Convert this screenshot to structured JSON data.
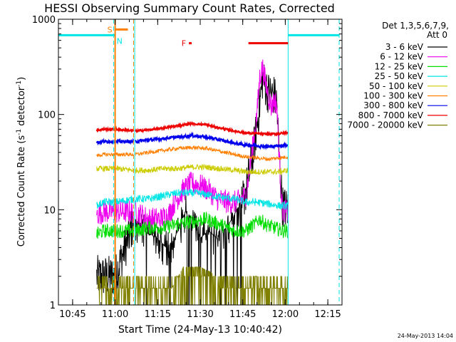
{
  "chart_data": {
    "type": "line",
    "title": "HESSI Observing Summary Count Rates, Corrected",
    "xlabel": "Start Time (24-May-13 10:40:42)",
    "ylabel_main": "Corrected Count Rate (s",
    "ylabel_sup1": "-1",
    "ylabel_mid": " detector",
    "ylabel_sup2": "-1",
    "ylabel_end": ")",
    "y_scale": "log",
    "ylim": [
      1,
      1000
    ],
    "xlim_minutes": [
      640,
      740
    ],
    "x_ticks": [
      {
        "m": 645,
        "label": "10:45"
      },
      {
        "m": 660,
        "label": "11:00"
      },
      {
        "m": 675,
        "label": "11:15"
      },
      {
        "m": 690,
        "label": "11:30"
      },
      {
        "m": 705,
        "label": "11:45"
      },
      {
        "m": 720,
        "label": "12:00"
      },
      {
        "m": 735,
        "label": "12:15"
      }
    ],
    "y_ticks": [
      {
        "v": 1,
        "label": "1"
      },
      {
        "v": 10,
        "label": "10"
      },
      {
        "v": 100,
        "label": "100"
      },
      {
        "v": 1000,
        "label": "1000"
      }
    ],
    "legend_header": [
      "Det 1,3,5,6,7,9,",
      "Att 0"
    ],
    "legend_position": "right",
    "footer": "24-May-2013 14:04",
    "data_gaps": [
      [
        640,
        653.5
      ],
      [
        666.5,
        667
      ],
      [
        721,
        740
      ]
    ],
    "series": [
      {
        "name": "3 - 6 keV",
        "color": "#000000",
        "values": [
          [
            653.5,
            2.0
          ],
          [
            655,
            2.0
          ],
          [
            660,
            2.0
          ],
          [
            667,
            8
          ],
          [
            670,
            6
          ],
          [
            675,
            5
          ],
          [
            678,
            4
          ],
          [
            681,
            5
          ],
          [
            685,
            10
          ],
          [
            687,
            8
          ],
          [
            690,
            5
          ],
          [
            693,
            6
          ],
          [
            696,
            5
          ],
          [
            700,
            7
          ],
          [
            703,
            10
          ],
          [
            706,
            15
          ],
          [
            709,
            45
          ],
          [
            711,
            130
          ],
          [
            712,
            240
          ],
          [
            713,
            200
          ],
          [
            714,
            170
          ],
          [
            716,
            160
          ],
          [
            717,
            130
          ],
          [
            718,
            30
          ],
          [
            719,
            11
          ],
          [
            721,
            10
          ]
        ]
      },
      {
        "name": "6 - 12 keV",
        "color": "#ee00ee",
        "values": [
          [
            653.5,
            9
          ],
          [
            656,
            9.5
          ],
          [
            660,
            9.5
          ],
          [
            667,
            9.5
          ],
          [
            672,
            8
          ],
          [
            676,
            8
          ],
          [
            679,
            9
          ],
          [
            681,
            12
          ],
          [
            684,
            16
          ],
          [
            687,
            19
          ],
          [
            690,
            18
          ],
          [
            693,
            16
          ],
          [
            696,
            13
          ],
          [
            700,
            12
          ],
          [
            703,
            12
          ],
          [
            706,
            14
          ],
          [
            708,
            35
          ],
          [
            710,
            100
          ],
          [
            711,
            250
          ],
          [
            712,
            310
          ],
          [
            713,
            220
          ],
          [
            714,
            160
          ],
          [
            715,
            120
          ],
          [
            716,
            140
          ],
          [
            717,
            130
          ],
          [
            718,
            30
          ],
          [
            719,
            10
          ],
          [
            721,
            9.5
          ]
        ]
      },
      {
        "name": "12 - 25 keV",
        "color": "#00dd00",
        "values": [
          [
            653.5,
            5.5
          ],
          [
            656,
            6
          ],
          [
            660,
            6
          ],
          [
            667,
            6
          ],
          [
            672,
            6.5
          ],
          [
            677,
            6.5
          ],
          [
            682,
            7
          ],
          [
            687,
            7.5
          ],
          [
            692,
            8
          ],
          [
            697,
            7
          ],
          [
            702,
            6
          ],
          [
            706,
            6
          ],
          [
            709,
            7
          ],
          [
            711,
            8
          ],
          [
            713,
            7
          ],
          [
            716,
            6.5
          ],
          [
            719,
            6
          ],
          [
            721,
            6
          ]
        ]
      },
      {
        "name": "25 - 50 keV",
        "color": "#00e5e5",
        "values": [
          [
            653.5,
            11
          ],
          [
            656,
            12
          ],
          [
            660,
            12
          ],
          [
            667,
            13
          ],
          [
            672,
            13
          ],
          [
            677,
            14
          ],
          [
            682,
            15
          ],
          [
            687,
            15
          ],
          [
            692,
            14.5
          ],
          [
            697,
            13.5
          ],
          [
            702,
            13
          ],
          [
            706,
            12
          ],
          [
            710,
            12
          ],
          [
            714,
            11.5
          ],
          [
            718,
            11
          ],
          [
            721,
            11
          ]
        ]
      },
      {
        "name": "50 - 100 keV",
        "color": "#cccc00",
        "values": [
          [
            653.5,
            27
          ],
          [
            656,
            27
          ],
          [
            660,
            27
          ],
          [
            667,
            26
          ],
          [
            672,
            26
          ],
          [
            677,
            27
          ],
          [
            682,
            27
          ],
          [
            687,
            28
          ],
          [
            692,
            28
          ],
          [
            697,
            27
          ],
          [
            702,
            26
          ],
          [
            706,
            25
          ],
          [
            710,
            25
          ],
          [
            714,
            25
          ],
          [
            718,
            25
          ],
          [
            721,
            26
          ]
        ]
      },
      {
        "name": "100 - 300 keV",
        "color": "#ff8000",
        "values": [
          [
            653.5,
            37
          ],
          [
            656,
            38
          ],
          [
            660,
            38
          ],
          [
            667,
            38
          ],
          [
            672,
            40
          ],
          [
            677,
            42
          ],
          [
            682,
            44
          ],
          [
            687,
            45
          ],
          [
            692,
            44
          ],
          [
            697,
            41
          ],
          [
            702,
            38
          ],
          [
            706,
            36
          ],
          [
            710,
            35
          ],
          [
            714,
            34
          ],
          [
            718,
            35
          ],
          [
            721,
            36
          ]
        ]
      },
      {
        "name": "300 - 800 keV",
        "color": "#0000ee",
        "values": [
          [
            653.5,
            51
          ],
          [
            656,
            52
          ],
          [
            660,
            52
          ],
          [
            667,
            52
          ],
          [
            672,
            54
          ],
          [
            677,
            56
          ],
          [
            682,
            58
          ],
          [
            687,
            60
          ],
          [
            692,
            58
          ],
          [
            697,
            54
          ],
          [
            702,
            50
          ],
          [
            706,
            48
          ],
          [
            710,
            47
          ],
          [
            714,
            46
          ],
          [
            718,
            47
          ],
          [
            721,
            48
          ]
        ]
      },
      {
        "name": "800 - 7000 keV",
        "color": "#ee0000",
        "values": [
          [
            653.5,
            68
          ],
          [
            656,
            70
          ],
          [
            660,
            70
          ],
          [
            667,
            67
          ],
          [
            672,
            69
          ],
          [
            677,
            72
          ],
          [
            682,
            76
          ],
          [
            687,
            80
          ],
          [
            692,
            78
          ],
          [
            697,
            72
          ],
          [
            702,
            67
          ],
          [
            706,
            64
          ],
          [
            710,
            63
          ],
          [
            714,
            62
          ],
          [
            718,
            63
          ],
          [
            721,
            65
          ]
        ]
      },
      {
        "name": "7000 - 20000 keV",
        "color": "#808000",
        "values": [
          [
            653.5,
            1.5
          ],
          [
            656,
            1.5
          ],
          [
            660,
            1.5
          ],
          [
            667,
            1.5
          ],
          [
            675,
            1.5
          ],
          [
            680,
            1.5
          ],
          [
            684,
            2.5
          ],
          [
            690,
            2.5
          ],
          [
            694,
            2.2
          ],
          [
            697,
            1.5
          ],
          [
            702,
            1.5
          ],
          [
            710,
            1.5
          ],
          [
            715,
            1.5
          ],
          [
            721,
            1.5
          ]
        ]
      }
    ],
    "status_bars": [
      {
        "label": "S",
        "color": "#ff8000",
        "start": 660,
        "end": 664.5,
        "level": 780
      },
      {
        "label": "N",
        "color": "#00e5e5",
        "start": 659.5,
        "end": 660,
        "level": 680
      },
      {
        "label": "",
        "color": "#00e5e5",
        "start": 640,
        "end": 659.5,
        "level": 680
      },
      {
        "label": "",
        "color": "#00e5e5",
        "start": 721,
        "end": 739,
        "level": 680
      },
      {
        "label": "F",
        "color": "#ee0000",
        "start": 686,
        "end": 687,
        "level": 560
      },
      {
        "label": "",
        "color": "#ee0000",
        "start": 707,
        "end": 721,
        "level": 560
      }
    ],
    "vlines": [
      {
        "m": 660,
        "color": "#ff8000",
        "style": "solid"
      },
      {
        "m": 666.5,
        "color": "#ff8000",
        "style": "dashed"
      },
      {
        "m": 659.5,
        "color": "#00e5e5",
        "style": "dashed"
      },
      {
        "m": 666.9,
        "color": "#00e5e5",
        "style": "solid"
      },
      {
        "m": 721,
        "color": "#00e5e5",
        "style": "solid"
      },
      {
        "m": 739,
        "color": "#00e5e5",
        "style": "dashed"
      }
    ]
  }
}
